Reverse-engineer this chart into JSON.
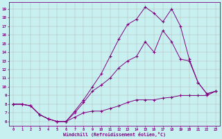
{
  "xlabel": "Windchill (Refroidissement éolien,°C)",
  "bg_color": "#c8f0f0",
  "line_color": "#800080",
  "grid_color": "#b0b0b0",
  "ylim": [
    5.5,
    19.8
  ],
  "xlim": [
    -0.5,
    23.5
  ],
  "yticks": [
    6,
    7,
    8,
    9,
    10,
    11,
    12,
    13,
    14,
    15,
    16,
    17,
    18,
    19
  ],
  "xticks": [
    0,
    1,
    2,
    3,
    4,
    5,
    6,
    7,
    8,
    9,
    10,
    11,
    12,
    13,
    14,
    15,
    16,
    17,
    18,
    19,
    20,
    21,
    22,
    23
  ],
  "line1_x": [
    0,
    1,
    2,
    3,
    4,
    5,
    6,
    7,
    8,
    9,
    10,
    11,
    12,
    13,
    14,
    15,
    16,
    17,
    18,
    19,
    20,
    21,
    22,
    23
  ],
  "line1_y": [
    8.0,
    8.0,
    7.8,
    6.8,
    6.3,
    6.0,
    6.0,
    6.5,
    7.0,
    7.2,
    7.2,
    7.5,
    7.8,
    8.2,
    8.5,
    8.5,
    8.5,
    8.7,
    8.8,
    9.0,
    9.0,
    9.0,
    9.0,
    9.5
  ],
  "line2_x": [
    0,
    1,
    2,
    3,
    4,
    5,
    6,
    7,
    8,
    9,
    10,
    11,
    12,
    13,
    14,
    15,
    16,
    17,
    18,
    19,
    20,
    21,
    22,
    23
  ],
  "line2_y": [
    8.0,
    8.0,
    7.8,
    6.8,
    6.3,
    6.0,
    6.0,
    7.0,
    8.2,
    9.5,
    10.2,
    11.0,
    12.2,
    13.0,
    13.5,
    15.2,
    14.0,
    16.5,
    15.2,
    13.2,
    13.0,
    10.5,
    9.2,
    9.5
  ],
  "line3_x": [
    0,
    1,
    2,
    3,
    4,
    5,
    6,
    7,
    8,
    9,
    10,
    11,
    12,
    13,
    14,
    15,
    16,
    17,
    18,
    19,
    20,
    21,
    22,
    23
  ],
  "line3_y": [
    8.0,
    8.0,
    7.8,
    6.8,
    6.3,
    6.0,
    6.0,
    7.2,
    8.5,
    10.0,
    11.5,
    13.5,
    15.5,
    17.2,
    17.8,
    19.2,
    18.5,
    17.5,
    19.0,
    17.0,
    13.2,
    10.5,
    9.2,
    9.5
  ]
}
